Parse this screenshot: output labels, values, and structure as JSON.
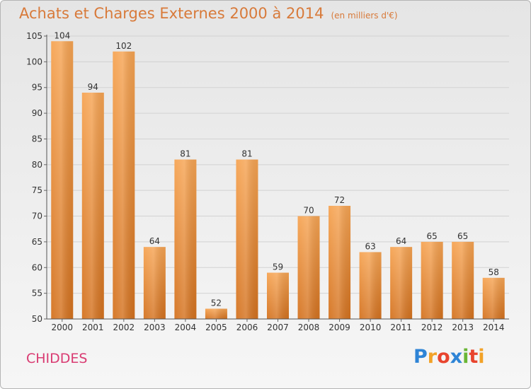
{
  "title": "Achats et Charges Externes 2000 à 2014",
  "subtitle": "(en milliers d'€)",
  "commune": "CHIDDES",
  "logo": {
    "text": "Proxiti",
    "letters": [
      {
        "char": "P",
        "color": "#2e84d6"
      },
      {
        "char": "r",
        "color": "#f2a227"
      },
      {
        "char": "o",
        "color": "#e8442e"
      },
      {
        "char": "x",
        "color": "#2e84d6"
      },
      {
        "char": "i",
        "color": "#6ab635"
      },
      {
        "char": "t",
        "color": "#e8442e"
      },
      {
        "char": "i",
        "color": "#f2a227"
      }
    ]
  },
  "chart_data": {
    "type": "bar",
    "categories": [
      "2000",
      "2001",
      "2002",
      "2003",
      "2004",
      "2005",
      "2006",
      "2007",
      "2008",
      "2009",
      "2010",
      "2011",
      "2012",
      "2013",
      "2014"
    ],
    "values": [
      104,
      94,
      102,
      64,
      81,
      52,
      81,
      59,
      70,
      72,
      63,
      64,
      65,
      65,
      58
    ],
    "ylim": [
      50,
      105
    ],
    "yticks": [
      50,
      55,
      60,
      65,
      70,
      75,
      80,
      85,
      90,
      95,
      100,
      105
    ],
    "grid": true,
    "bar_color": "#f0923a"
  }
}
